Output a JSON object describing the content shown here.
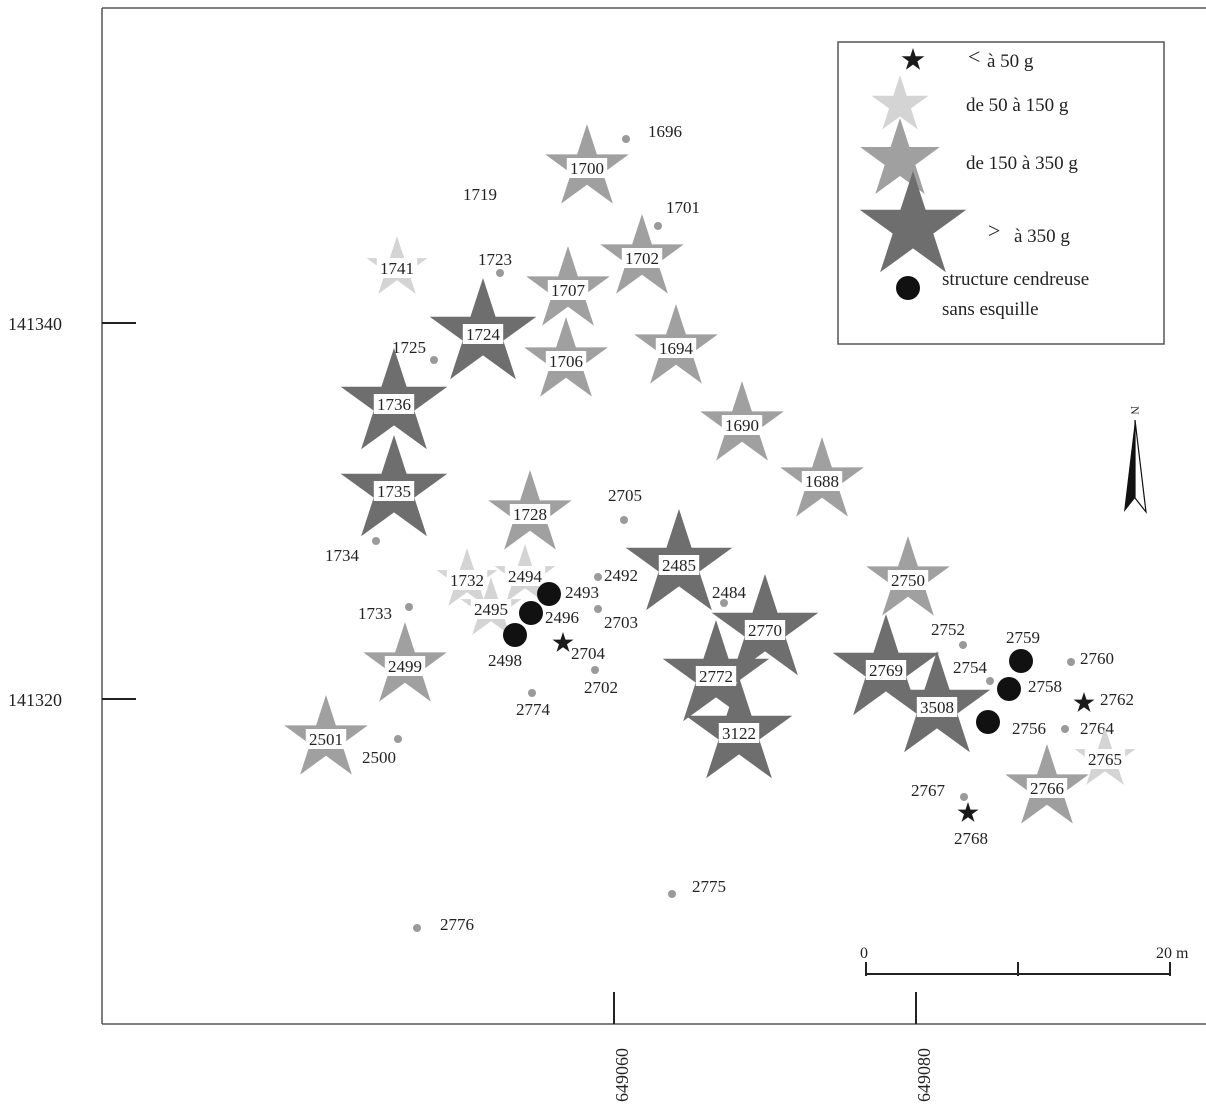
{
  "colors": {
    "small": "#1a1a1a",
    "light": "#d4d4d4",
    "medium": "#a0a0a0",
    "dark": "#6e6e6e",
    "dot": "#9a9a9a",
    "hearth": "#111111",
    "frame": "#555555"
  },
  "axes": {
    "x_ticks": [
      {
        "label": "649060",
        "value": 649060
      },
      {
        "label": "649080",
        "value": 649080
      }
    ],
    "y_ticks": [
      {
        "label": "141340",
        "value": 141340
      },
      {
        "label": "141320",
        "value": 141320
      }
    ]
  },
  "legend": {
    "items": [
      {
        "symbol": "small-star",
        "prefix": "<",
        "text": "à 50 g"
      },
      {
        "symbol": "light-star",
        "prefix": "",
        "text": "de 50 à 150 g"
      },
      {
        "symbol": "medium-star",
        "prefix": "",
        "text": "de 150 à 350 g"
      },
      {
        "symbol": "dark-star",
        "prefix": ">",
        "text": "à 350 g"
      },
      {
        "symbol": "hearth-dot",
        "prefix": "",
        "text": "structure cendreuse",
        "text2": "sans esquille"
      }
    ]
  },
  "scale_bar": {
    "start": "0",
    "end": "20 m"
  },
  "north_arrow": {
    "label": "N"
  },
  "features": [
    {
      "id": "1700",
      "class": "medium"
    },
    {
      "id": "1702",
      "class": "medium"
    },
    {
      "id": "1707",
      "class": "medium"
    },
    {
      "id": "1706",
      "class": "medium"
    },
    {
      "id": "1694",
      "class": "medium"
    },
    {
      "id": "1690",
      "class": "medium"
    },
    {
      "id": "1688",
      "class": "medium"
    },
    {
      "id": "1728",
      "class": "medium"
    },
    {
      "id": "2750",
      "class": "medium"
    },
    {
      "id": "2499",
      "class": "medium"
    },
    {
      "id": "2501",
      "class": "medium"
    },
    {
      "id": "2766",
      "class": "medium"
    },
    {
      "id": "1741",
      "class": "light"
    },
    {
      "id": "1732",
      "class": "light"
    },
    {
      "id": "2494",
      "class": "light"
    },
    {
      "id": "2495",
      "class": "light"
    },
    {
      "id": "2765",
      "class": "light"
    },
    {
      "id": "1724",
      "class": "dark"
    },
    {
      "id": "1736",
      "class": "dark"
    },
    {
      "id": "1735",
      "class": "dark"
    },
    {
      "id": "2485",
      "class": "dark"
    },
    {
      "id": "2770",
      "class": "dark"
    },
    {
      "id": "2772",
      "class": "dark"
    },
    {
      "id": "3122",
      "class": "dark"
    },
    {
      "id": "2769",
      "class": "dark"
    },
    {
      "id": "3508",
      "class": "dark"
    },
    {
      "id": "2704",
      "class": "small"
    },
    {
      "id": "2762",
      "class": "small"
    },
    {
      "id": "2768",
      "class": "small"
    },
    {
      "id": "2493",
      "class": "hearth"
    },
    {
      "id": "2496",
      "class": "hearth"
    },
    {
      "id": "2498",
      "class": "hearth"
    },
    {
      "id": "2759",
      "class": "hearth"
    },
    {
      "id": "2758",
      "class": "hearth"
    },
    {
      "id": "2756",
      "class": "hearth"
    },
    {
      "id": "1696",
      "class": "dot"
    },
    {
      "id": "1701",
      "class": "dot"
    },
    {
      "id": "1719",
      "class": "dot"
    },
    {
      "id": "1723",
      "class": "dot"
    },
    {
      "id": "1725",
      "class": "dot"
    },
    {
      "id": "1734",
      "class": "dot"
    },
    {
      "id": "1733",
      "class": "dot"
    },
    {
      "id": "2705",
      "class": "dot"
    },
    {
      "id": "2492",
      "class": "dot"
    },
    {
      "id": "2703",
      "class": "dot"
    },
    {
      "id": "2702",
      "class": "dot"
    },
    {
      "id": "2774",
      "class": "dot"
    },
    {
      "id": "2484",
      "class": "dot"
    },
    {
      "id": "2500",
      "class": "dot"
    },
    {
      "id": "2775",
      "class": "dot"
    },
    {
      "id": "2776",
      "class": "dot"
    },
    {
      "id": "2752",
      "class": "dot"
    },
    {
      "id": "2754",
      "class": "dot"
    },
    {
      "id": "2760",
      "class": "dot"
    },
    {
      "id": "2764",
      "class": "dot"
    },
    {
      "id": "2767",
      "class": "dot"
    }
  ]
}
